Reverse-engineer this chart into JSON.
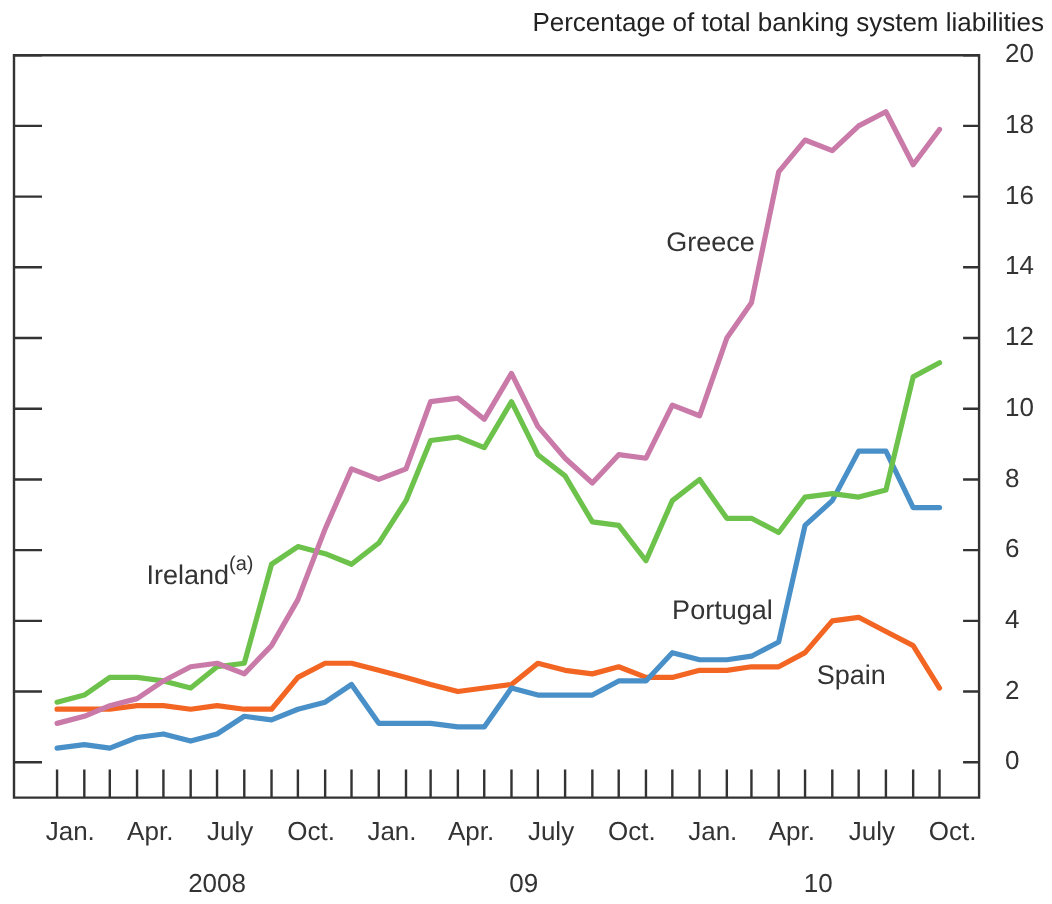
{
  "chart_data": {
    "type": "line",
    "ylabel": "Percentage of total banking system liabilities",
    "x": [
      "2008-01",
      "2008-02",
      "2008-03",
      "2008-04",
      "2008-05",
      "2008-06",
      "2008-07",
      "2008-08",
      "2008-09",
      "2008-10",
      "2008-11",
      "2008-12",
      "2009-01",
      "2009-02",
      "2009-03",
      "2009-04",
      "2009-05",
      "2009-06",
      "2009-07",
      "2009-08",
      "2009-09",
      "2009-10",
      "2009-11",
      "2009-12",
      "2010-01",
      "2010-02",
      "2010-03",
      "2010-04",
      "2010-05",
      "2010-06",
      "2010-07",
      "2010-08",
      "2010-09",
      "2010-10"
    ],
    "series": [
      {
        "name": "Greece",
        "color": "#c97aa9",
        "values": [
          1.1,
          1.3,
          1.6,
          1.8,
          2.3,
          2.7,
          2.8,
          2.5,
          3.3,
          4.6,
          6.6,
          8.3,
          8.0,
          8.3,
          10.2,
          10.3,
          9.7,
          11.0,
          9.5,
          8.6,
          7.9,
          8.7,
          8.6,
          10.1,
          9.8,
          12.0,
          13.0,
          16.7,
          17.6,
          17.3,
          18.0,
          18.4,
          16.9,
          17.9
        ]
      },
      {
        "name": "Ireland$^{(a)}$",
        "color": "#6cc24a",
        "values": [
          1.7,
          1.9,
          2.4,
          2.4,
          2.3,
          2.1,
          2.7,
          2.8,
          5.6,
          6.1,
          5.9,
          5.6,
          6.2,
          7.4,
          9.1,
          9.2,
          8.9,
          10.2,
          8.7,
          8.1,
          6.8,
          6.7,
          5.7,
          7.4,
          8.0,
          6.9,
          6.9,
          6.5,
          7.5,
          7.6,
          7.5,
          7.7,
          10.9,
          11.3
        ]
      },
      {
        "name": "Portugal",
        "color": "#4a90c8",
        "values": [
          0.4,
          0.5,
          0.4,
          0.7,
          0.8,
          0.6,
          0.8,
          1.3,
          1.2,
          1.5,
          1.7,
          2.2,
          1.1,
          1.1,
          1.1,
          1.0,
          1.0,
          2.1,
          1.9,
          1.9,
          1.9,
          2.3,
          2.3,
          3.1,
          2.9,
          2.9,
          3.0,
          3.4,
          6.7,
          7.4,
          8.8,
          8.8,
          7.2,
          7.2
        ]
      },
      {
        "name": "Spain",
        "color": "#f26522",
        "values": [
          1.5,
          1.5,
          1.5,
          1.6,
          1.6,
          1.5,
          1.6,
          1.5,
          1.5,
          2.4,
          2.8,
          2.8,
          2.6,
          2.4,
          2.2,
          2.0,
          2.1,
          2.2,
          2.8,
          2.6,
          2.5,
          2.7,
          2.4,
          2.4,
          2.6,
          2.6,
          2.7,
          2.7,
          3.1,
          4.0,
          4.1,
          3.7,
          3.3,
          2.1
        ]
      }
    ],
    "xlim": [
      "2007-11-13",
      "2010-11-15"
    ],
    "xticks": [
      {
        "value": "2008-01-16",
        "label": "Jan."
      },
      {
        "value": "2008-04-16",
        "label": "Apr."
      },
      {
        "value": "2008-07-16",
        "label": "July"
      },
      {
        "value": "2008-10-16",
        "label": "Oct."
      },
      {
        "value": "2009-01-16",
        "label": "Jan."
      },
      {
        "value": "2009-04-16",
        "label": "Apr."
      },
      {
        "value": "2009-07-16",
        "label": "July"
      },
      {
        "value": "2009-10-16",
        "label": "Oct."
      },
      {
        "value": "2010-01-16",
        "label": "Jan."
      },
      {
        "value": "2010-04-16",
        "label": "Apr."
      },
      {
        "value": "2010-07-16",
        "label": "July"
      },
      {
        "value": "2010-10-16",
        "label": "Oct."
      },
      {
        "value": "2008-01",
        "label": null
      },
      {
        "value": "2008-02",
        "label": null
      },
      {
        "value": "2008-03",
        "label": null
      },
      {
        "value": "2008-04",
        "label": null
      },
      {
        "value": "2008-05",
        "label": null
      },
      {
        "value": "2008-06",
        "label": null
      },
      {
        "value": "2008-07",
        "label": null
      },
      {
        "value": "2008-08",
        "label": null
      },
      {
        "value": "2008-09",
        "label": null
      },
      {
        "value": "2008-10",
        "label": null
      },
      {
        "value": "2008-11",
        "label": null
      },
      {
        "value": "2008-12",
        "label": null
      },
      {
        "value": "2009-01",
        "label": null
      },
      {
        "value": "2009-02",
        "label": null
      },
      {
        "value": "2009-03",
        "label": null
      },
      {
        "value": "2009-04",
        "label": null
      },
      {
        "value": "2009-05",
        "label": null
      },
      {
        "value": "2009-06",
        "label": null
      },
      {
        "value": "2009-07",
        "label": null
      },
      {
        "value": "2009-08",
        "label": null
      },
      {
        "value": "2009-09",
        "label": null
      },
      {
        "value": "2009-10",
        "label": null
      },
      {
        "value": "2009-11",
        "label": null
      },
      {
        "value": "2009-12",
        "label": null
      },
      {
        "value": "2010-01",
        "label": null
      },
      {
        "value": "2010-02",
        "label": null
      },
      {
        "value": "2010-03",
        "label": null
      },
      {
        "value": "2010-04",
        "label": null
      },
      {
        "value": "2010-05",
        "label": null
      },
      {
        "value": "2010-06",
        "label": null
      },
      {
        "value": "2010-07",
        "label": null
      },
      {
        "value": "2010-08",
        "label": null
      },
      {
        "value": "2010-09",
        "label": null
      },
      {
        "value": "2010-10",
        "label": null
      }
    ],
    "x2lim": [
      "2007-11-13",
      "2010-11-15"
    ],
    "x2ticks": [
      {
        "value": "2008-07-01",
        "label": "2008"
      },
      {
        "value": "2009-06-15",
        "label": "09"
      },
      {
        "value": "2010-05-16",
        "label": "10"
      }
    ],
    "ylim": [
      -1,
      20
    ],
    "yticks": [
      0,
      2,
      4,
      6,
      8,
      10,
      12,
      14,
      16,
      18,
      20
    ],
    "grid": false,
    "legend": false,
    "marker": "none",
    "line_style": "solid"
  }
}
